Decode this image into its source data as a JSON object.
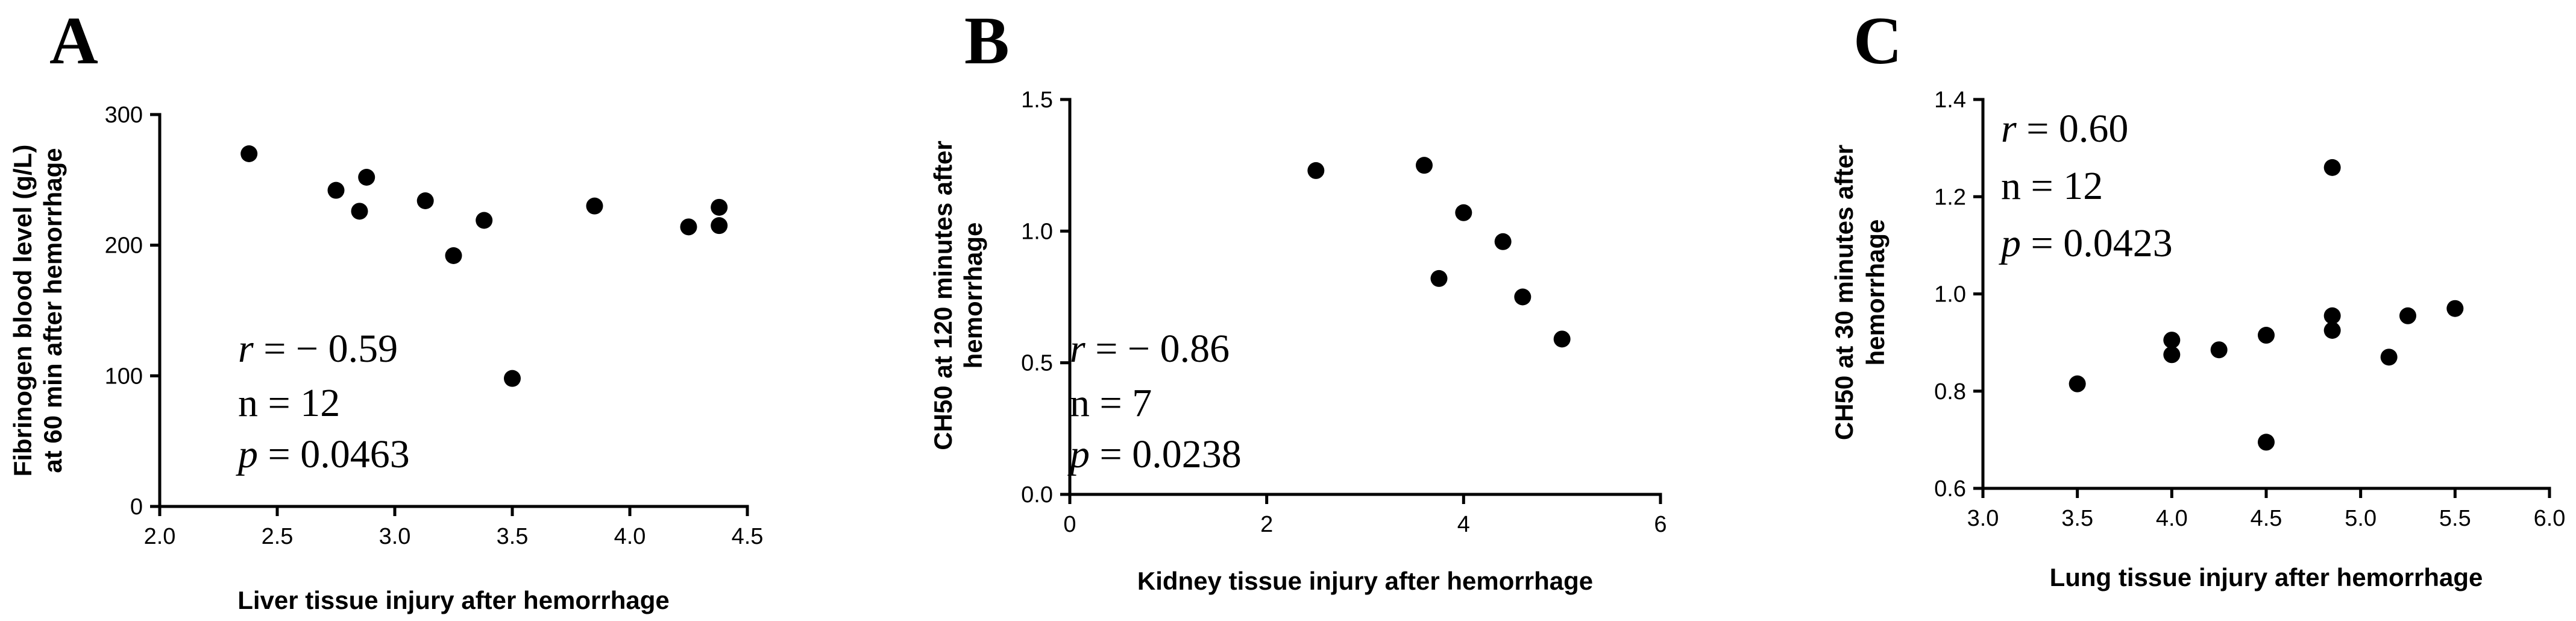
{
  "chart_data": [
    {
      "type": "scatter",
      "panel_label": "A",
      "xlabel": "Liver tissue injury after hemorrhage",
      "ylabel_lines": [
        "Fibrinogen blood level (g/L)",
        "at 60 min after hemorrhage"
      ],
      "xlim": [
        2.0,
        4.5
      ],
      "ylim": [
        0,
        300
      ],
      "xticks": [
        "2.0",
        "2.5",
        "3.0",
        "3.5",
        "4.0",
        "4.5"
      ],
      "yticks": [
        "0",
        "100",
        "200",
        "300"
      ],
      "points": [
        {
          "x": 2.38,
          "y": 270
        },
        {
          "x": 2.75,
          "y": 242
        },
        {
          "x": 2.85,
          "y": 226
        },
        {
          "x": 2.88,
          "y": 252
        },
        {
          "x": 3.13,
          "y": 234
        },
        {
          "x": 3.25,
          "y": 192
        },
        {
          "x": 3.38,
          "y": 219
        },
        {
          "x": 3.5,
          "y": 98
        },
        {
          "x": 3.85,
          "y": 230
        },
        {
          "x": 4.25,
          "y": 214
        },
        {
          "x": 4.38,
          "y": 229
        },
        {
          "x": 4.38,
          "y": 215
        }
      ],
      "stats": {
        "r_label": "r",
        "r_value": " = − 0.59",
        "n_text": "n = 12",
        "p_label": "p",
        "p_value": " = 0.0463"
      },
      "grid": false
    },
    {
      "type": "scatter",
      "panel_label": "B",
      "xlabel": "Kidney tissue injury after hemorrhage",
      "ylabel_lines": [
        "CH50 at 120 minutes after",
        "hemorrhage"
      ],
      "xlim": [
        0,
        6
      ],
      "ylim": [
        0.0,
        1.5
      ],
      "xticks": [
        "0",
        "2",
        "4",
        "6"
      ],
      "yticks": [
        "0.0",
        "0.5",
        "1.0",
        "1.5"
      ],
      "points": [
        {
          "x": 2.5,
          "y": 1.23
        },
        {
          "x": 3.6,
          "y": 1.25
        },
        {
          "x": 3.75,
          "y": 0.82
        },
        {
          "x": 4.0,
          "y": 1.07
        },
        {
          "x": 4.4,
          "y": 0.96
        },
        {
          "x": 4.6,
          "y": 0.75
        },
        {
          "x": 5.0,
          "y": 0.59
        }
      ],
      "stats": {
        "r_label": "r",
        "r_value": " = − 0.86",
        "n_text": "n = 7",
        "p_label": "p",
        "p_value": " = 0.0238"
      },
      "grid": false
    },
    {
      "type": "scatter",
      "panel_label": "C",
      "xlabel": "Lung tissue injury after hemorrhage",
      "ylabel_lines": [
        "CH50 at 30 minutes after",
        "hemorrhage"
      ],
      "xlim": [
        3.0,
        6.0
      ],
      "ylim": [
        0.6,
        1.4
      ],
      "xticks": [
        "3.0",
        "3.5",
        "4.0",
        "4.5",
        "5.0",
        "5.5",
        "6.0"
      ],
      "yticks": [
        "0.6",
        "0.8",
        "1.0",
        "1.2",
        "1.4"
      ],
      "points": [
        {
          "x": 3.5,
          "y": 0.815
        },
        {
          "x": 4.0,
          "y": 0.905
        },
        {
          "x": 4.0,
          "y": 0.875
        },
        {
          "x": 4.25,
          "y": 0.885
        },
        {
          "x": 4.5,
          "y": 0.915
        },
        {
          "x": 4.5,
          "y": 0.695
        },
        {
          "x": 4.85,
          "y": 1.26
        },
        {
          "x": 4.85,
          "y": 0.955
        },
        {
          "x": 4.85,
          "y": 0.925
        },
        {
          "x": 5.15,
          "y": 0.87
        },
        {
          "x": 5.25,
          "y": 0.955
        },
        {
          "x": 5.5,
          "y": 0.97
        }
      ],
      "stats": {
        "r_label": "r",
        "r_value": " = 0.60",
        "n_text": "n = 12",
        "p_label": "p",
        "p_value": " = 0.0423"
      },
      "grid": false
    }
  ]
}
